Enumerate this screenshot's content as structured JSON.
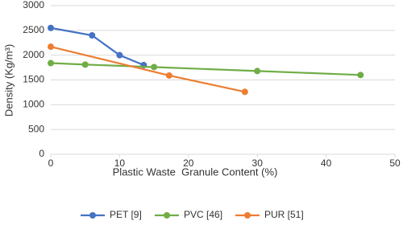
{
  "chart_data": {
    "type": "line",
    "xlabel": "Plastic Waste  Granule Content (%)",
    "ylabel": "Density (Kg/m³)",
    "xlim": [
      0,
      50
    ],
    "xticks": [
      0,
      10,
      20,
      30,
      40,
      50
    ],
    "ylim": [
      0,
      3000
    ],
    "yticks": [
      0,
      500,
      1000,
      1500,
      2000,
      2500,
      3000
    ],
    "grid": true,
    "legend": "bottom",
    "series": [
      {
        "name": "PET [9]",
        "color": "#4472c4",
        "x": [
          0,
          6,
          10,
          13.5
        ],
        "values": [
          2550,
          2400,
          2000,
          1800
        ]
      },
      {
        "name": "PVC [46]",
        "color": "#70ad47",
        "x": [
          0,
          5,
          15,
          30,
          45
        ],
        "values": [
          1840,
          1810,
          1760,
          1680,
          1600
        ]
      },
      {
        "name": "PUR [51]",
        "color": "#ed7d31",
        "x": [
          0,
          17.2,
          28.2
        ],
        "values": [
          2170,
          1590,
          1260
        ]
      }
    ]
  }
}
